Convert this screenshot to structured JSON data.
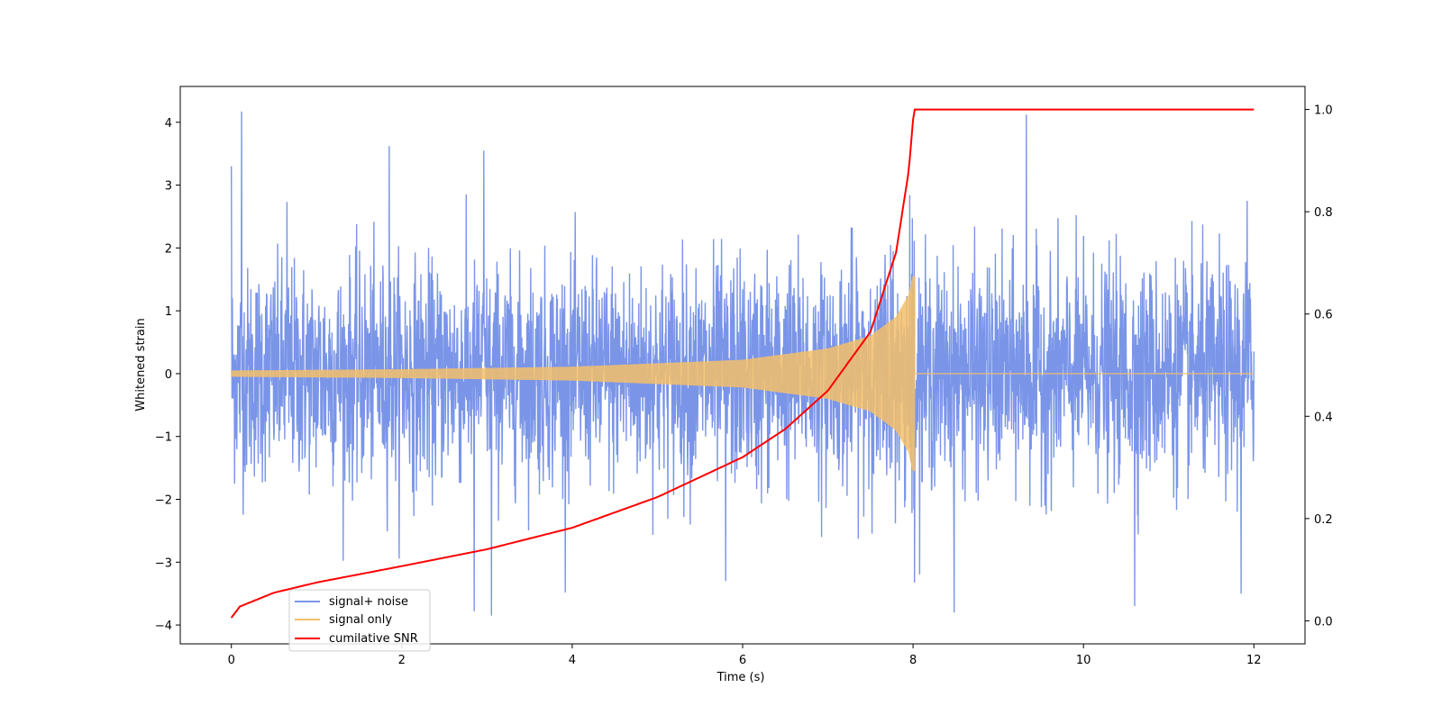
{
  "chart_data": {
    "type": "line",
    "title": "",
    "xlabel": "Time (s)",
    "ylabel": "Whitened strain",
    "y2label": "",
    "xlim": [
      -0.6,
      12.6
    ],
    "ylim": [
      -4.3,
      4.57
    ],
    "y2lim": [
      -0.045,
      1.045
    ],
    "xticks": [
      0,
      2,
      4,
      6,
      8,
      10,
      12
    ],
    "yticks": [
      -4,
      -3,
      -2,
      -1,
      0,
      1,
      2,
      3,
      4
    ],
    "y2ticks": [
      0.0,
      0.2,
      0.4,
      0.6,
      0.8,
      1.0
    ],
    "xtick_labels": [
      "0",
      "2",
      "4",
      "6",
      "8",
      "10",
      "12"
    ],
    "ytick_labels": [
      "−4",
      "−3",
      "−2",
      "−1",
      "0",
      "1",
      "2",
      "3",
      "4"
    ],
    "y2tick_labels": [
      "0.0",
      "0.2",
      "0.4",
      "0.6",
      "0.8",
      "1.0"
    ],
    "grid": false,
    "legend": {
      "placement": "lower-left"
    },
    "series": [
      {
        "name": "signal+ noise",
        "axis": "left",
        "color": "#7a95e8",
        "kind": "noisy-strain",
        "x_range": [
          0,
          12
        ],
        "approx_std": 1.0,
        "approx_peaks": [
          [
            0.0,
            3.3
          ],
          [
            0.12,
            4.17
          ],
          [
            0.65,
            2.73
          ],
          [
            1.85,
            3.62
          ],
          [
            2.96,
            3.55
          ],
          [
            3.05,
            -3.85
          ],
          [
            2.85,
            -3.78
          ],
          [
            5.8,
            -3.3
          ],
          [
            8.48,
            -3.8
          ],
          [
            9.33,
            4.12
          ],
          [
            10.6,
            -3.7
          ],
          [
            11.85,
            -3.5
          ],
          [
            11.92,
            2.75
          ]
        ]
      },
      {
        "name": "signal only",
        "axis": "left",
        "color": "#f5c06a",
        "kind": "chirp",
        "x_range": [
          0,
          8.02
        ],
        "amplitude_envelope": [
          [
            0.0,
            0.05
          ],
          [
            2.0,
            0.07
          ],
          [
            4.0,
            0.11
          ],
          [
            6.0,
            0.22
          ],
          [
            7.0,
            0.4
          ],
          [
            7.5,
            0.6
          ],
          [
            7.8,
            0.9
          ],
          [
            7.95,
            1.25
          ],
          [
            8.0,
            1.55
          ]
        ],
        "flat_after": [
          8.02,
          12.0
        ]
      },
      {
        "name": "cumilative SNR",
        "axis": "right",
        "color": "#ff0000",
        "kind": "cumulative",
        "points": [
          [
            0.0,
            0.006
          ],
          [
            0.1,
            0.028
          ],
          [
            0.5,
            0.055
          ],
          [
            1.0,
            0.075
          ],
          [
            2.0,
            0.107
          ],
          [
            3.0,
            0.14
          ],
          [
            4.0,
            0.182
          ],
          [
            5.0,
            0.242
          ],
          [
            6.0,
            0.32
          ],
          [
            6.5,
            0.375
          ],
          [
            7.0,
            0.45
          ],
          [
            7.5,
            0.565
          ],
          [
            7.8,
            0.72
          ],
          [
            7.95,
            0.88
          ],
          [
            8.01,
            1.0
          ],
          [
            12.0,
            1.0
          ]
        ]
      }
    ]
  }
}
